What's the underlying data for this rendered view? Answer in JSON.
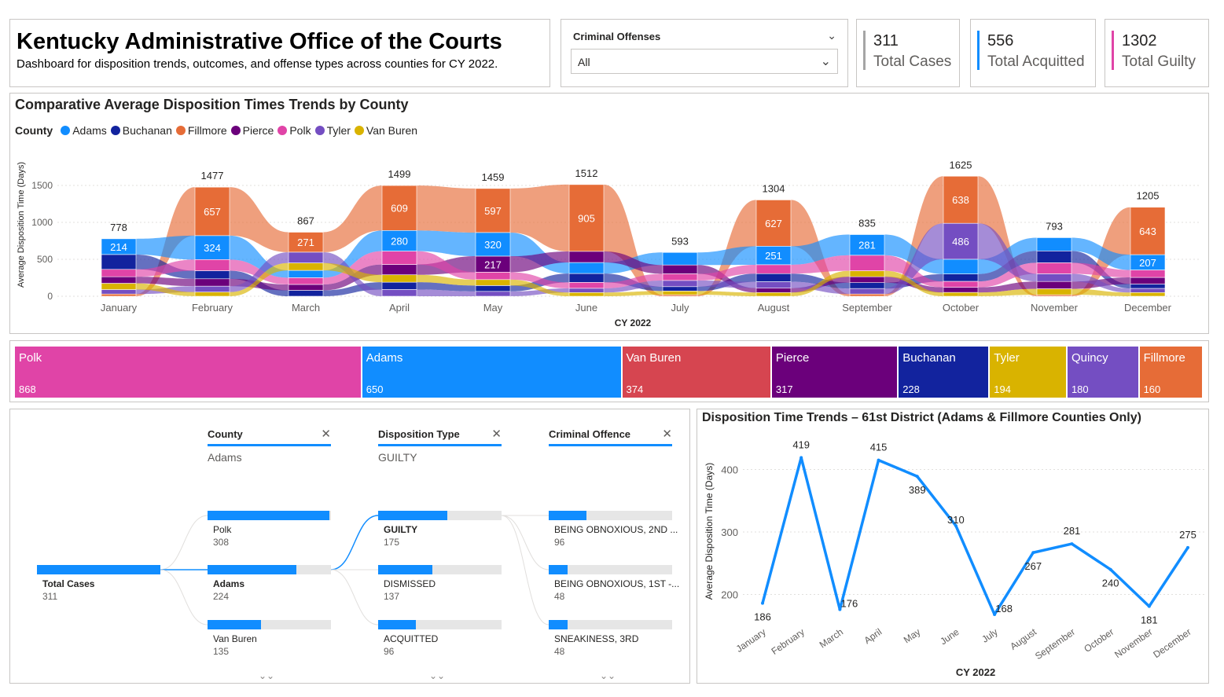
{
  "header": {
    "title": "Kentucky Administrative Office of the Courts",
    "subtitle": "Dashboard for disposition trends, outcomes, and offense types across counties for CY 2022."
  },
  "filter": {
    "label": "Criminal Offenses",
    "value": "All"
  },
  "kpis": [
    {
      "value": "311",
      "label": "Total Cases",
      "color": "#a5a5a5"
    },
    {
      "value": "556",
      "label": "Total Acquitted",
      "color": "#118dff"
    },
    {
      "value": "1302",
      "label": "Total Guilty",
      "color": "#e044a7"
    }
  ],
  "colors": {
    "Adams": "#118dff",
    "Buchanan": "#12239e",
    "Fillmore": "#e66c37",
    "Pierce": "#6b007b",
    "Polk": "#e044a7",
    "Tyler": "#744ec2",
    "Van Buren": "#d9b300",
    "Quincy": "#744ec2"
  },
  "chart_data": [
    {
      "type": "bar",
      "title": "Comparative Average Disposition Times Trends by County",
      "legend_title": "County",
      "legend_position": "top-left",
      "xlabel": "CY 2022",
      "ylabel": "Average Disposition Time (Days)",
      "ylim": [
        0,
        1700
      ],
      "yticks": [
        0,
        500,
        1000,
        1500
      ],
      "grid": true,
      "categories": [
        "January",
        "February",
        "March",
        "April",
        "May",
        "June",
        "July",
        "August",
        "September",
        "October",
        "November",
        "December"
      ],
      "totals": [
        778,
        1477,
        867,
        1499,
        1459,
        1512,
        593,
        1304,
        835,
        1625,
        793,
        1205
      ],
      "series": [
        {
          "name": "Fillmore",
          "values": [
            30,
            657,
            271,
            609,
            597,
            905,
            20,
            627,
            30,
            638,
            20,
            643
          ]
        },
        {
          "name": "Adams",
          "values": [
            214,
            324,
            100,
            280,
            320,
            150,
            170,
            251,
            281,
            200,
            180,
            207
          ]
        },
        {
          "name": "Buchanan",
          "values": [
            200,
            110,
            80,
            100,
            80,
            120,
            60,
            110,
            80,
            100,
            160,
            60
          ]
        },
        {
          "name": "Pierce",
          "values": [
            90,
            100,
            80,
            140,
            217,
            150,
            120,
            60,
            80,
            70,
            100,
            90
          ]
        },
        {
          "name": "Polk",
          "values": [
            100,
            150,
            90,
            180,
            100,
            80,
            90,
            120,
            210,
            80,
            150,
            100
          ]
        },
        {
          "name": "Tyler",
          "values": [
            60,
            80,
            146,
            90,
            65,
            57,
            83,
            86,
            74,
            486,
            103,
            55
          ]
        },
        {
          "name": "Van Buren",
          "values": [
            84,
            56,
            100,
            100,
            80,
            50,
            50,
            50,
            80,
            51,
            80,
            50
          ]
        }
      ],
      "data_labels": [
        {
          "month": "January",
          "series": "Adams",
          "value": 214
        },
        {
          "month": "February",
          "series": "Fillmore",
          "value": 657
        },
        {
          "month": "February",
          "series": "Adams",
          "value": 324
        },
        {
          "month": "March",
          "series": "Fillmore",
          "value": 271
        },
        {
          "month": "April",
          "series": "Fillmore",
          "value": 609
        },
        {
          "month": "April",
          "series": "Adams",
          "value": 280
        },
        {
          "month": "May",
          "series": "Fillmore",
          "value": 597
        },
        {
          "month": "May",
          "series": "Adams",
          "value": 320
        },
        {
          "month": "May",
          "series": "Pierce",
          "value": 217
        },
        {
          "month": "June",
          "series": "Fillmore",
          "value": 905
        },
        {
          "month": "August",
          "series": "Fillmore",
          "value": 627
        },
        {
          "month": "August",
          "series": "Adams",
          "value": 251
        },
        {
          "month": "September",
          "series": "Adams",
          "value": 281
        },
        {
          "month": "October",
          "series": "Fillmore",
          "value": 638
        },
        {
          "month": "October",
          "series": "Tyler",
          "value": 486
        },
        {
          "month": "December",
          "series": "Fillmore",
          "value": 643
        },
        {
          "month": "December",
          "series": "Adams",
          "value": 207
        }
      ]
    },
    {
      "type": "treemap",
      "categories": [
        "Polk",
        "Adams",
        "Van Buren",
        "Pierce",
        "Buchanan",
        "Tyler",
        "Quincy",
        "Fillmore"
      ],
      "values": [
        868,
        650,
        374,
        317,
        228,
        194,
        180,
        160
      ],
      "colors": [
        "#e044a7",
        "#118dff",
        "#d64550",
        "#6b007b",
        "#12239e",
        "#d9b300",
        "#744ec2",
        "#e66c37"
      ]
    },
    {
      "type": "line",
      "title": "Disposition Time Trends – 61st District (Adams & Fillmore Counties Only)",
      "xlabel": "CY 2022",
      "ylabel": "Average Disposition Time (Days)",
      "ylim": [
        155,
        440
      ],
      "yticks": [
        200,
        300,
        400
      ],
      "grid": true,
      "x": [
        "January",
        "February",
        "March",
        "April",
        "May",
        "June",
        "July",
        "August",
        "September",
        "October",
        "November",
        "December"
      ],
      "series": [
        {
          "values": [
            186,
            419,
            176,
            415,
            389,
            310,
            168,
            267,
            281,
            240,
            181,
            275
          ]
        }
      ]
    }
  ],
  "decomposition": {
    "columns": [
      {
        "header": "County",
        "selected": "Adams"
      },
      {
        "header": "Disposition Type",
        "selected": "GUILTY"
      },
      {
        "header": "Criminal Offence",
        "selected": ""
      }
    ],
    "root": {
      "label": "Total Cases",
      "value": "311",
      "max": 311
    },
    "levels": [
      [
        {
          "label": "Polk",
          "value": "308",
          "num": 308
        },
        {
          "label": "Adams",
          "value": "224",
          "num": 224
        },
        {
          "label": "Van Buren",
          "value": "135",
          "num": 135
        }
      ],
      [
        {
          "label": "GUILTY",
          "value": "175",
          "num": 175
        },
        {
          "label": "DISMISSED",
          "value": "137",
          "num": 137
        },
        {
          "label": "ACQUITTED",
          "value": "96",
          "num": 96
        }
      ],
      [
        {
          "label": "BEING OBNOXIOUS, 2ND ...",
          "value": "96",
          "num": 96
        },
        {
          "label": "BEING OBNOXIOUS, 1ST -...",
          "value": "48",
          "num": 48
        },
        {
          "label": "SNEAKINESS, 3RD",
          "value": "48",
          "num": 48
        }
      ]
    ]
  }
}
